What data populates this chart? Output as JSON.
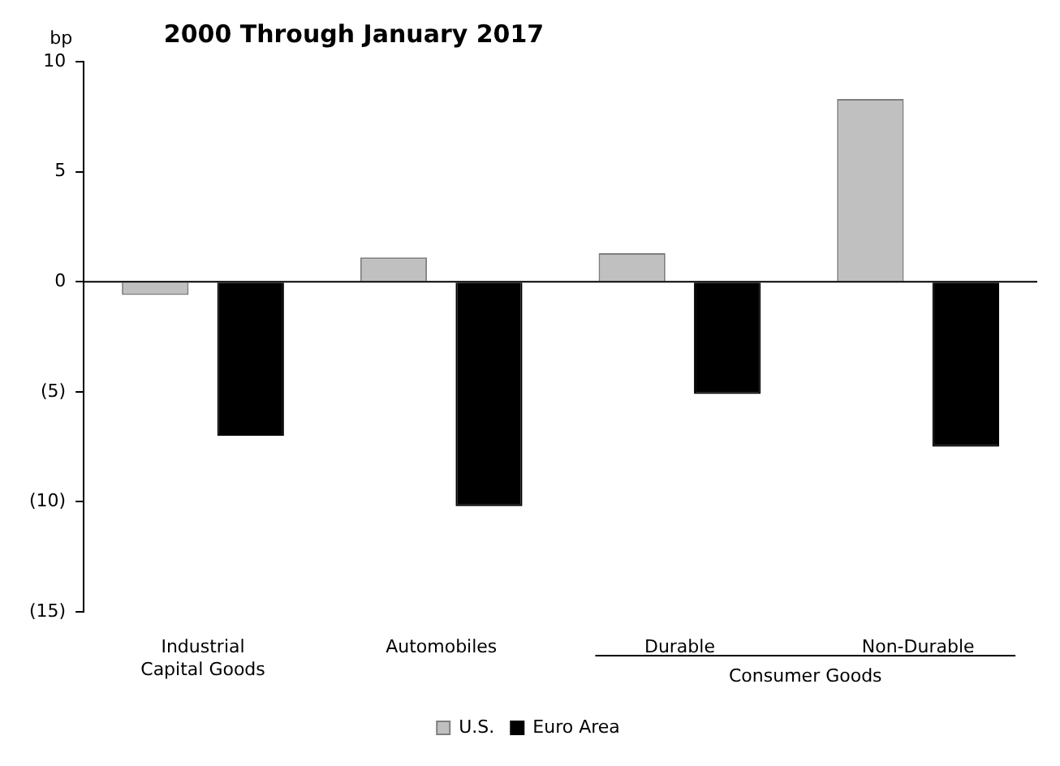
{
  "chart_data": {
    "type": "bar",
    "title": "2000 Through January 2017",
    "ylabel": "bp",
    "categories": [
      "Industrial\nCapital Goods",
      "Automobiles",
      "Durable",
      "Non-Durable"
    ],
    "series": [
      {
        "name": "U.S.",
        "color": "#c0c0c0",
        "values": [
          -0.6,
          1.1,
          1.3,
          8.3
        ]
      },
      {
        "name": "Euro Area",
        "color": "#000000",
        "values": [
          -7.0,
          -10.2,
          -5.1,
          -7.5
        ]
      }
    ],
    "ylim": [
      -15,
      10
    ],
    "yticks": [
      {
        "value": -15,
        "label": "(15)"
      },
      {
        "value": -10,
        "label": "(10)"
      },
      {
        "value": -5,
        "label": "(5)"
      },
      0,
      5,
      10
    ],
    "annotations": [
      "Consumer Goods"
    ],
    "ref_lines": [
      {
        "axis": "y",
        "value": 0
      }
    ],
    "grid": false,
    "legend": "bottom"
  }
}
